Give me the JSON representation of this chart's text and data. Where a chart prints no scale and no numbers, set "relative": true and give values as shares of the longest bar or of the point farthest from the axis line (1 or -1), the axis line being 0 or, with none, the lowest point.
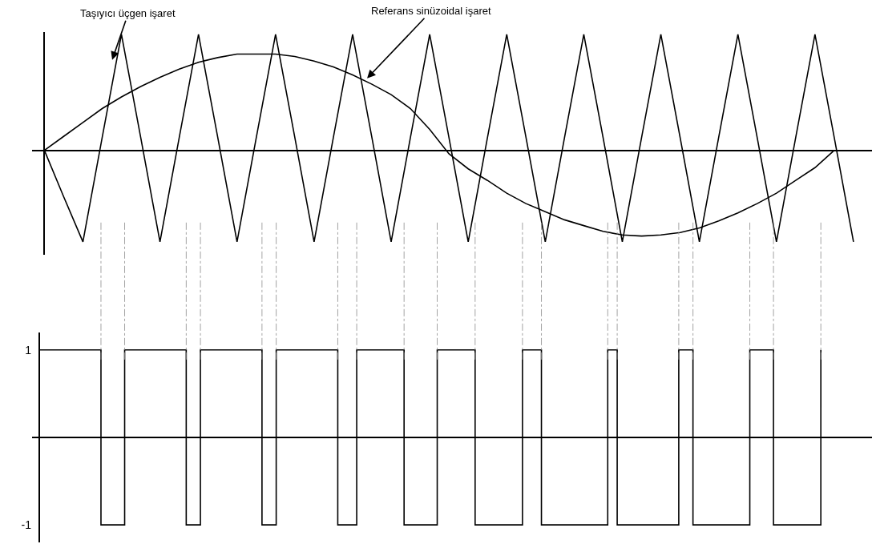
{
  "chart_data": [
    {
      "type": "line",
      "relative": true,
      "tick_labels": false,
      "categories": [
        null,
        null,
        null,
        null,
        null,
        null,
        null,
        null,
        null,
        null,
        null,
        null,
        null,
        null,
        null,
        null,
        null,
        null,
        null,
        null,
        null,
        null,
        null,
        null,
        null,
        null,
        null,
        null,
        null,
        null,
        null,
        null,
        null,
        null,
        null,
        null,
        null,
        null,
        null,
        null,
        null,
        null,
        null
      ],
      "series": [
        {
          "color": "#000000",
          "values": [
            0,
            -0.4,
            -0.79,
            0.11,
            1,
            0.11,
            -0.79,
            0.11,
            1,
            0.11,
            -0.79,
            0.11,
            1,
            0.11,
            -0.79,
            0.11,
            1,
            0.11,
            -0.79,
            0.11,
            1,
            0.11,
            -0.79,
            0.11,
            1,
            0.11,
            -0.79,
            0.11,
            1,
            0.11,
            -0.79,
            0.11,
            1,
            0.11,
            -0.79,
            0.11,
            1,
            0.11,
            -0.79,
            0.11,
            1,
            0.11,
            -0.79
          ]
        },
        {
          "color": "#000000",
          "values": [
            0,
            0.12,
            0.24,
            0.36,
            0.46,
            0.55,
            0.63,
            0.7,
            0.76,
            0.8,
            0.83,
            0.83,
            0.83,
            0.81,
            0.77,
            0.72,
            0.65,
            0.57,
            0.48,
            0.36,
            0.18,
            -0.03,
            -0.16,
            -0.26,
            -0.37,
            -0.46,
            -0.53,
            -0.6,
            -0.65,
            -0.7,
            -0.73,
            -0.74,
            -0.73,
            -0.71,
            -0.67,
            -0.61,
            -0.54,
            -0.46,
            -0.37,
            -0.26,
            -0.15,
            0,
            null
          ]
        }
      ],
      "annotations": [
        "Taşıyıcı üçgen işaret",
        "Referans sinüzoidal işaret"
      ]
    },
    {
      "type": "step",
      "tick_labels": "y",
      "ylim": [
        -1.2,
        1.2
      ],
      "yticks": [
        1,
        -1
      ],
      "categories": [
        null,
        null,
        null,
        null,
        null,
        null,
        null,
        null,
        null,
        null,
        null,
        null,
        null,
        null,
        null,
        null,
        null,
        null,
        null,
        null,
        null,
        null,
        null,
        null,
        null,
        null,
        null,
        null,
        null,
        null,
        null,
        null,
        null,
        null,
        null,
        null,
        null,
        null,
        null,
        null,
        null,
        null,
        null,
        null,
        null,
        null,
        null,
        null,
        null,
        null,
        null,
        null,
        null,
        null,
        null,
        null,
        null,
        null,
        null,
        null,
        null,
        null,
        null,
        null,
        null,
        null,
        null,
        null,
        null,
        null,
        null,
        null,
        null,
        null,
        null,
        null,
        null,
        null,
        null,
        null,
        null,
        null,
        null,
        null,
        null,
        null,
        null,
        null,
        null,
        null,
        null,
        null,
        null,
        null,
        null,
        null,
        null,
        null,
        null,
        null,
        null,
        null,
        null,
        null,
        null,
        null,
        null,
        null,
        null,
        null,
        null,
        null,
        null,
        null,
        null,
        null,
        null,
        null,
        null,
        null,
        null,
        null,
        null,
        null,
        null,
        null,
        null,
        null,
        null,
        null,
        null,
        null,
        null,
        null,
        null,
        null,
        null,
        null,
        null,
        null,
        null,
        null,
        null,
        null,
        null,
        null,
        null,
        null,
        null,
        null,
        null,
        null,
        null,
        null,
        null,
        null,
        null,
        null,
        null,
        null,
        null,
        null,
        null,
        null,
        null,
        null
      ],
      "series": [
        {
          "color": "#000000",
          "values": [
            1,
            1,
            1,
            1,
            1,
            1,
            1,
            1,
            1,
            1,
            1,
            1,
            1,
            -1,
            -1,
            -1,
            -1,
            -1,
            1,
            1,
            1,
            1,
            1,
            1,
            1,
            1,
            1,
            1,
            1,
            1,
            1,
            -1,
            -1,
            -1,
            1,
            1,
            1,
            1,
            1,
            1,
            1,
            1,
            1,
            1,
            1,
            1,
            1,
            -1,
            -1,
            -1,
            1,
            1,
            1,
            1,
            1,
            1,
            1,
            1,
            1,
            1,
            1,
            1,
            1,
            -1,
            -1,
            -1,
            -1,
            1,
            1,
            1,
            1,
            1,
            1,
            1,
            1,
            1,
            1,
            -1,
            -1,
            -1,
            -1,
            -1,
            -1,
            -1,
            1,
            1,
            1,
            1,
            1,
            1,
            1,
            1,
            -1,
            -1,
            -1,
            -1,
            -1,
            -1,
            -1,
            -1,
            -1,
            -1,
            1,
            1,
            1,
            1,
            -1,
            -1,
            -1,
            -1,
            -1,
            -1,
            -1,
            -1,
            -1,
            -1,
            -1,
            -1,
            -1,
            -1,
            1,
            1,
            -1,
            -1,
            -1,
            -1,
            -1,
            -1,
            -1,
            -1,
            -1,
            -1,
            -1,
            -1,
            -1,
            1,
            1,
            1,
            -1,
            -1,
            -1,
            -1,
            -1,
            -1,
            -1,
            -1,
            -1,
            -1,
            -1,
            -1,
            1,
            1,
            1,
            1,
            1,
            -1,
            -1,
            -1,
            -1,
            -1,
            -1,
            -1,
            -1,
            -1,
            -1,
            1
          ]
        }
      ]
    }
  ]
}
